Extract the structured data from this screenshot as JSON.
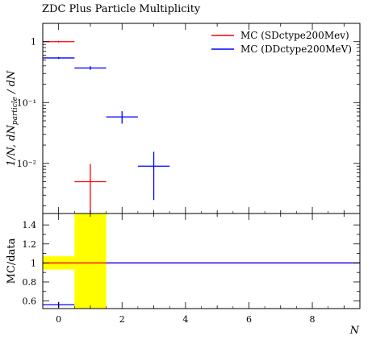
{
  "title": "ZDC Plus Particle Multiplicity",
  "chart_data": {
    "type": "scatter",
    "title": "ZDC Plus Particle Multiplicity",
    "xlabel": "N",
    "ylabel": "1/N, dN_particle / dN",
    "ratio_ylabel": "MC/data",
    "xlim": [
      -0.5,
      9.5
    ],
    "ylim": [
      0.0015,
      2
    ],
    "yscale": "log",
    "ratio_ylim": [
      0.52,
      1.52
    ],
    "x_ticks": [
      0,
      2,
      4,
      6,
      8
    ],
    "y_ticks": [
      {
        "value": 1,
        "label": "1"
      },
      {
        "value": 0.1,
        "label": "10⁻¹"
      },
      {
        "value": 0.01,
        "label": "10⁻²"
      }
    ],
    "ratio_ticks": [
      0.6,
      0.8,
      1,
      1.2,
      1.4
    ],
    "legend_position": "top-right",
    "series": [
      {
        "name": "MC (SDctype200Mev)",
        "color": "#ff0000",
        "points": [
          {
            "x": 0,
            "xlo": -0.5,
            "xhi": 0.5,
            "y": 1.0,
            "ylo": 0.97,
            "yhi": 1.03
          },
          {
            "x": 1,
            "xlo": 0.5,
            "xhi": 1.5,
            "y": 0.005,
            "ylo": 0.0015,
            "yhi": 0.0098
          }
        ],
        "ratio": [
          {
            "xlo": -0.5,
            "xhi": 9.5,
            "y": 1.0
          }
        ]
      },
      {
        "name": "MC (DDctype200MeV)",
        "color": "#0000ff",
        "points": [
          {
            "x": 0,
            "xlo": -0.5,
            "xhi": 0.5,
            "y": 0.54,
            "ylo": 0.52,
            "yhi": 0.56
          },
          {
            "x": 1,
            "xlo": 0.5,
            "xhi": 1.5,
            "y": 0.37,
            "ylo": 0.345,
            "yhi": 0.395
          },
          {
            "x": 2,
            "xlo": 1.5,
            "xhi": 2.5,
            "y": 0.058,
            "ylo": 0.045,
            "yhi": 0.072
          },
          {
            "x": 3,
            "xlo": 2.5,
            "xhi": 3.5,
            "y": 0.009,
            "ylo": 0.0025,
            "yhi": 0.0155
          }
        ],
        "ratio": [
          {
            "xlo": -0.5,
            "xhi": 0.5,
            "y": 0.56,
            "ylo": 0.53,
            "yhi": 0.59
          },
          {
            "xlo": 1.5,
            "xhi": 9.5,
            "y": 1.0
          }
        ]
      }
    ],
    "data_uncertainty_bands": [
      {
        "xlo": -0.5,
        "xhi": 0.5,
        "lo": 0.93,
        "hi": 1.07
      },
      {
        "xlo": 0.5,
        "xhi": 1.5,
        "lo": 0.52,
        "hi": 1.52
      }
    ]
  }
}
